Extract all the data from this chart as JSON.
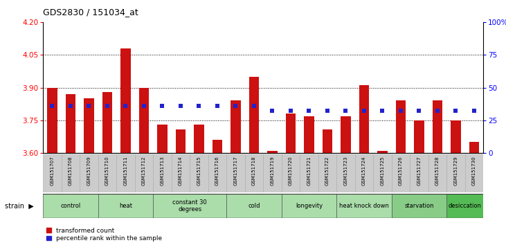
{
  "title": "GDS2830 / 151034_at",
  "samples": [
    "GSM151707",
    "GSM151708",
    "GSM151709",
    "GSM151710",
    "GSM151711",
    "GSM151712",
    "GSM151713",
    "GSM151714",
    "GSM151715",
    "GSM151716",
    "GSM151717",
    "GSM151718",
    "GSM151719",
    "GSM151720",
    "GSM151721",
    "GSM151722",
    "GSM151723",
    "GSM151724",
    "GSM151725",
    "GSM151726",
    "GSM151727",
    "GSM151728",
    "GSM151729",
    "GSM151730"
  ],
  "bar_values": [
    3.9,
    3.87,
    3.85,
    3.88,
    4.08,
    3.9,
    3.73,
    3.71,
    3.73,
    3.66,
    3.84,
    3.95,
    3.61,
    3.78,
    3.77,
    3.71,
    3.77,
    3.91,
    3.61,
    3.84,
    3.75,
    3.84,
    3.75,
    3.65
  ],
  "pct_y_values": [
    3.815,
    3.815,
    3.815,
    3.815,
    3.815,
    3.815,
    3.815,
    3.815,
    3.815,
    3.815,
    3.815,
    3.815,
    3.795,
    3.795,
    3.795,
    3.795,
    3.795,
    3.795,
    3.795,
    3.795,
    3.795,
    3.795,
    3.795,
    3.795
  ],
  "groups": [
    {
      "name": "control",
      "start": 0,
      "end": 2,
      "color": "#aaddaa"
    },
    {
      "name": "heat",
      "start": 3,
      "end": 5,
      "color": "#aaddaa"
    },
    {
      "name": "constant 30\ndegrees",
      "start": 6,
      "end": 9,
      "color": "#aaddaa"
    },
    {
      "name": "cold",
      "start": 10,
      "end": 12,
      "color": "#aaddaa"
    },
    {
      "name": "longevity",
      "start": 13,
      "end": 15,
      "color": "#aaddaa"
    },
    {
      "name": "heat knock down",
      "start": 16,
      "end": 18,
      "color": "#aaddaa"
    },
    {
      "name": "starvation",
      "start": 19,
      "end": 21,
      "color": "#88cc88"
    },
    {
      "name": "desiccation",
      "start": 22,
      "end": 23,
      "color": "#55bb55"
    }
  ],
  "ymin": 3.6,
  "ymax": 4.2,
  "yticks": [
    3.6,
    3.75,
    3.9,
    4.05,
    4.2
  ],
  "right_yticks": [
    0,
    25,
    50,
    75,
    100
  ],
  "bar_color": "#cc1111",
  "dot_color": "#2222cc",
  "bar_bottom": 3.6,
  "legend_labels": [
    "transformed count",
    "percentile rank within the sample"
  ]
}
